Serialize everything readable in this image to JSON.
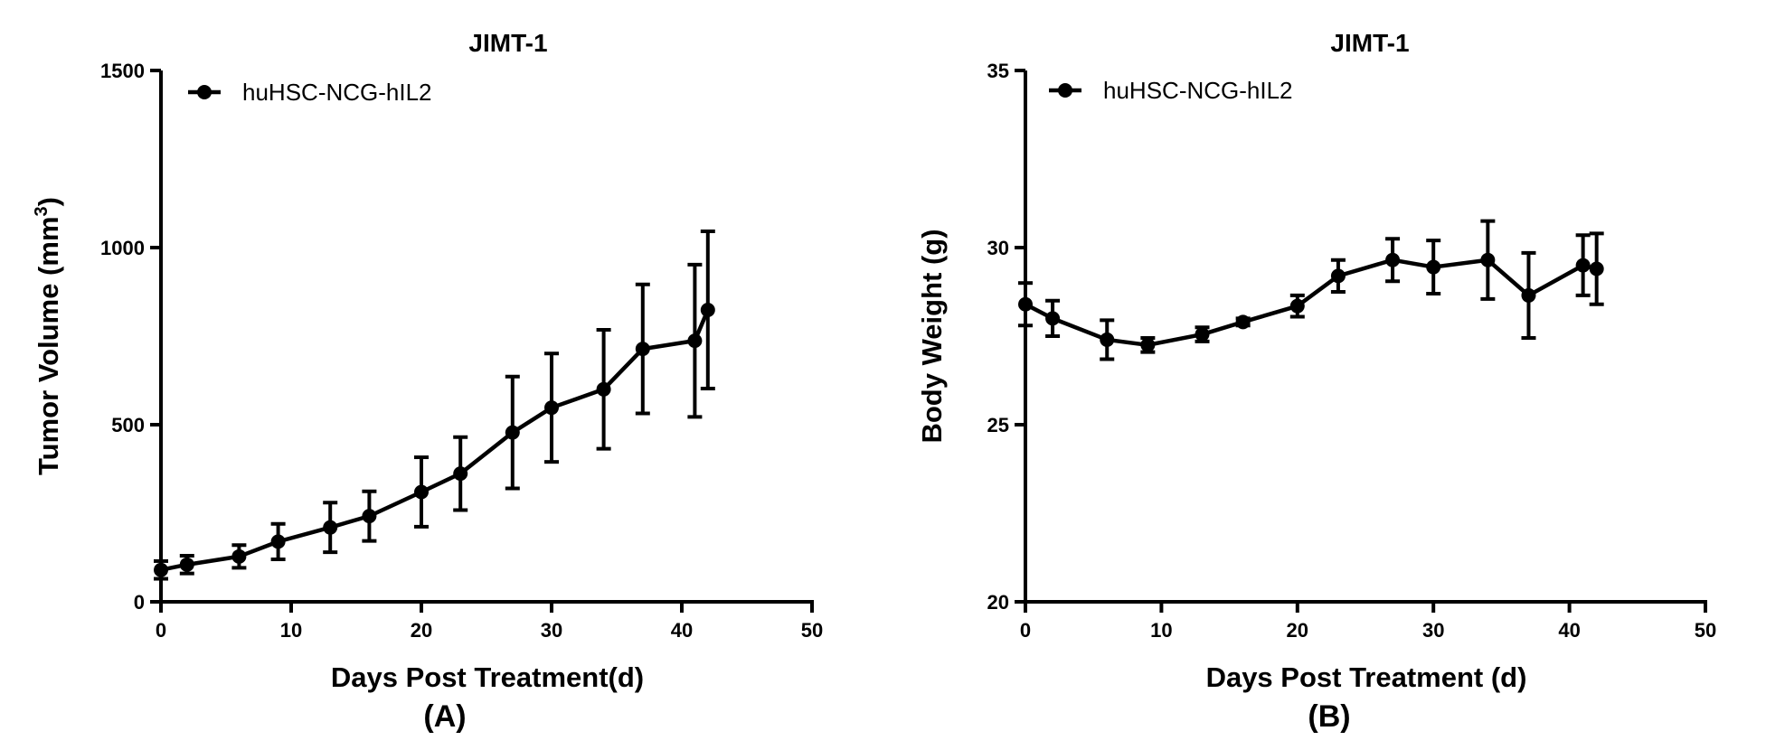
{
  "chart_data": [
    {
      "type": "line",
      "title": "JIMT-1",
      "xlabel": "Days Post Treatment(d)",
      "ylabel_main": "Tumor Volume (mm",
      "ylabel_sup": "3",
      "ylabel_close": ")",
      "panel_label": "(A)",
      "xlim": [
        0,
        50
      ],
      "ylim": [
        0,
        1500
      ],
      "xticks": [
        0,
        10,
        20,
        30,
        40,
        50
      ],
      "yticks": [
        0,
        500,
        1000,
        1500
      ],
      "xtick_labels": [
        "0",
        "10",
        "20",
        "30",
        "40",
        "50"
      ],
      "ytick_labels": [
        "0",
        "500",
        "1000",
        "1500"
      ],
      "legend": "top-left",
      "series": [
        {
          "name": "huHSC-NCG-hIL2",
          "x": [
            0,
            2,
            6,
            9,
            13,
            16,
            20,
            23,
            27,
            30,
            34,
            37,
            41,
            42
          ],
          "y": [
            90,
            105,
            128,
            170,
            210,
            242,
            310,
            362,
            478,
            548,
            600,
            714,
            737,
            824
          ],
          "err": [
            25,
            25,
            32,
            50,
            70,
            70,
            98,
            103,
            158,
            153,
            168,
            182,
            215,
            222
          ]
        }
      ]
    },
    {
      "type": "line",
      "title": "JIMT-1",
      "xlabel": "Days Post Treatment (d)",
      "ylabel": "Body Weight (g)",
      "panel_label": "(B)",
      "xlim": [
        0,
        50
      ],
      "ylim": [
        20,
        35
      ],
      "xticks": [
        0,
        10,
        20,
        30,
        40,
        50
      ],
      "yticks": [
        20,
        25,
        30,
        35
      ],
      "xtick_labels": [
        "0",
        "10",
        "20",
        "30",
        "40",
        "50"
      ],
      "ytick_labels": [
        "20",
        "25",
        "30",
        "35"
      ],
      "legend": "top-left",
      "series": [
        {
          "name": "huHSC-NCG-hIL2",
          "x": [
            0,
            2,
            6,
            9,
            13,
            16,
            20,
            23,
            27,
            30,
            34,
            37,
            41,
            42
          ],
          "y": [
            28.4,
            28.0,
            27.4,
            27.25,
            27.55,
            27.9,
            28.35,
            29.2,
            29.65,
            29.45,
            29.65,
            28.65,
            29.5,
            29.4
          ],
          "err": [
            0.6,
            0.5,
            0.55,
            0.2,
            0.2,
            0.1,
            0.3,
            0.45,
            0.6,
            0.75,
            1.1,
            1.2,
            0.85,
            1.0
          ]
        }
      ]
    }
  ]
}
